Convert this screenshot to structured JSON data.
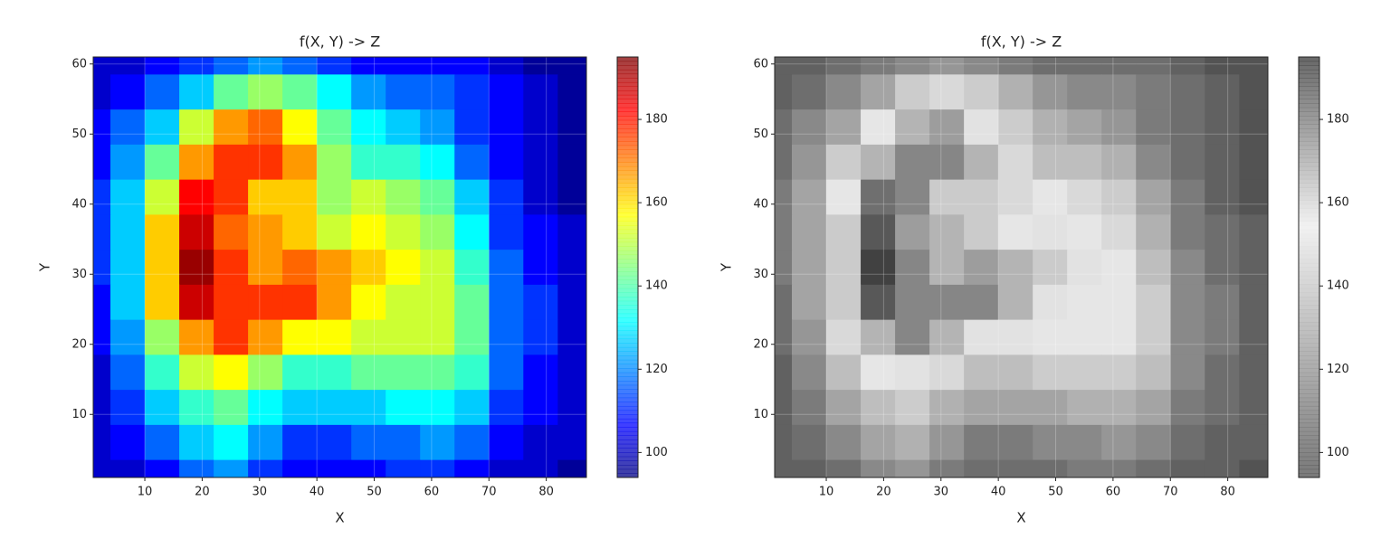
{
  "chart_data": [
    {
      "type": "contour",
      "title": "f(X, Y) -> Z",
      "x_label": "X",
      "y_label": "Y",
      "colormap": "jet",
      "x": [
        1,
        7,
        13,
        19,
        25,
        31,
        37,
        43,
        49,
        55,
        61,
        67,
        73,
        79,
        85
      ],
      "y": [
        61,
        56,
        51,
        46,
        41,
        36,
        31,
        26,
        21,
        16,
        11,
        6,
        1
      ],
      "z": [
        [
          100,
          100,
          105,
          110,
          115,
          120,
          115,
          110,
          108,
          108,
          105,
          105,
          100,
          97,
          95
        ],
        [
          103,
          108,
          115,
          125,
          140,
          145,
          140,
          130,
          120,
          118,
          115,
          110,
          105,
          100,
          95
        ],
        [
          105,
          115,
          128,
          150,
          165,
          170,
          155,
          140,
          130,
          125,
          120,
          112,
          105,
          100,
          97
        ],
        [
          108,
          120,
          140,
          165,
          178,
          178,
          165,
          145,
          138,
          135,
          130,
          118,
          108,
          102,
          98
        ],
        [
          110,
          125,
          150,
          183,
          178,
          160,
          160,
          148,
          150,
          148,
          140,
          125,
          110,
          104,
          98
        ],
        [
          110,
          128,
          160,
          188,
          172,
          165,
          160,
          152,
          155,
          152,
          145,
          132,
          112,
          106,
          100
        ],
        [
          110,
          128,
          163,
          190,
          175,
          168,
          174,
          165,
          160,
          155,
          150,
          138,
          115,
          108,
          102
        ],
        [
          108,
          125,
          160,
          185,
          175,
          178,
          177,
          168,
          158,
          153,
          150,
          140,
          118,
          110,
          103
        ],
        [
          106,
          120,
          145,
          168,
          175,
          165,
          158,
          155,
          152,
          150,
          150,
          140,
          118,
          110,
          104
        ],
        [
          104,
          115,
          135,
          150,
          155,
          145,
          138,
          138,
          140,
          142,
          142,
          135,
          115,
          108,
          103
        ],
        [
          103,
          110,
          125,
          138,
          140,
          130,
          125,
          125,
          128,
          132,
          133,
          125,
          110,
          105,
          102
        ],
        [
          102,
          106,
          115,
          125,
          130,
          120,
          112,
          112,
          115,
          118,
          120,
          115,
          105,
          103,
          100
        ],
        [
          100,
          103,
          108,
          115,
          120,
          112,
          106,
          106,
          108,
          110,
          110,
          107,
          102,
          100,
          98
        ]
      ],
      "xlim": [
        1,
        87
      ],
      "ylim": [
        1,
        61
      ],
      "xticks": [
        10,
        20,
        30,
        40,
        50,
        60,
        70,
        80
      ],
      "yticks": [
        10,
        20,
        30,
        40,
        50,
        60
      ],
      "clim": [
        94,
        195
      ],
      "cticks": [
        100,
        120,
        140,
        160,
        180
      ],
      "grid": true
    },
    {
      "type": "contour",
      "title": "f(X, Y) -> Z",
      "x_label": "X",
      "y_label": "Y",
      "colormap": "gray-fold",
      "x": [
        1,
        7,
        13,
        19,
        25,
        31,
        37,
        43,
        49,
        55,
        61,
        67,
        73,
        79,
        85
      ],
      "y": [
        61,
        56,
        51,
        46,
        41,
        36,
        31,
        26,
        21,
        16,
        11,
        6,
        1
      ],
      "z": [
        [
          100,
          100,
          105,
          110,
          115,
          120,
          115,
          110,
          108,
          108,
          105,
          105,
          100,
          97,
          95
        ],
        [
          103,
          108,
          115,
          125,
          140,
          145,
          140,
          130,
          120,
          118,
          115,
          110,
          105,
          100,
          95
        ],
        [
          105,
          115,
          128,
          150,
          165,
          170,
          155,
          140,
          130,
          125,
          120,
          112,
          105,
          100,
          97
        ],
        [
          108,
          120,
          140,
          165,
          178,
          178,
          165,
          145,
          138,
          135,
          130,
          118,
          108,
          102,
          98
        ],
        [
          110,
          125,
          150,
          183,
          178,
          160,
          160,
          148,
          150,
          148,
          140,
          125,
          110,
          104,
          98
        ],
        [
          110,
          128,
          160,
          188,
          172,
          165,
          160,
          152,
          155,
          152,
          145,
          132,
          112,
          106,
          100
        ],
        [
          110,
          128,
          163,
          190,
          175,
          168,
          174,
          165,
          160,
          155,
          150,
          138,
          115,
          108,
          102
        ],
        [
          108,
          125,
          160,
          185,
          175,
          178,
          177,
          168,
          158,
          153,
          150,
          140,
          118,
          110,
          103
        ],
        [
          106,
          120,
          145,
          168,
          175,
          165,
          158,
          155,
          152,
          150,
          150,
          140,
          118,
          110,
          104
        ],
        [
          104,
          115,
          135,
          150,
          155,
          145,
          138,
          138,
          140,
          142,
          142,
          135,
          115,
          108,
          103
        ],
        [
          103,
          110,
          125,
          138,
          140,
          130,
          125,
          125,
          128,
          132,
          133,
          125,
          110,
          105,
          102
        ],
        [
          102,
          106,
          115,
          125,
          130,
          120,
          112,
          112,
          115,
          118,
          120,
          115,
          105,
          103,
          100
        ],
        [
          100,
          103,
          108,
          115,
          120,
          112,
          106,
          106,
          108,
          110,
          110,
          107,
          102,
          100,
          98
        ]
      ],
      "xlim": [
        1,
        87
      ],
      "ylim": [
        1,
        61
      ],
      "xticks": [
        10,
        20,
        30,
        40,
        50,
        60,
        70,
        80
      ],
      "yticks": [
        10,
        20,
        30,
        40,
        50,
        60
      ],
      "clim": [
        94,
        195
      ],
      "cticks": [
        100,
        120,
        140,
        160,
        180
      ],
      "grid": true
    }
  ]
}
